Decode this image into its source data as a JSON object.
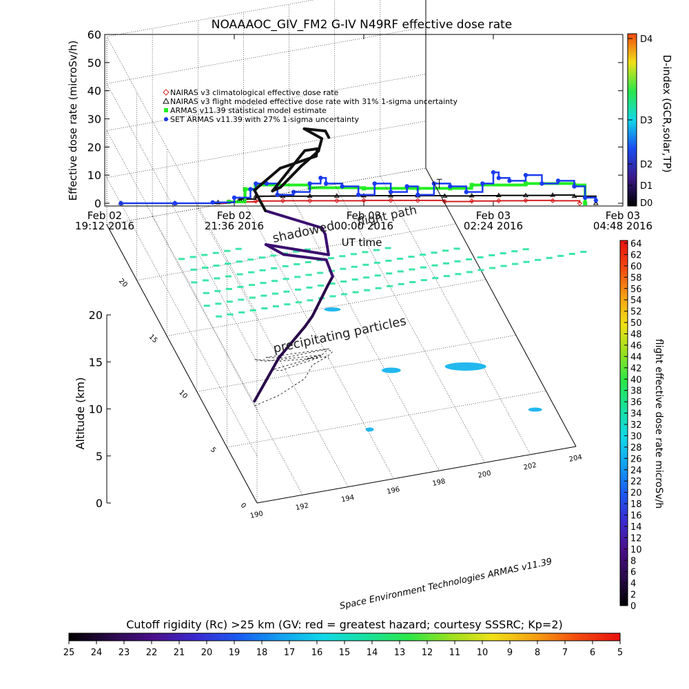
{
  "title": "NOAAAOC_GIV_FM2 G-IV   N49RF  effective dose rate",
  "chart_data": [
    {
      "type": "line",
      "ylabel": "Effective dose rate (microSv/h)",
      "ylim": [
        0,
        60
      ],
      "yticks": [
        "0",
        "10",
        "20",
        "30",
        "40",
        "50",
        "60"
      ],
      "xlabel": "UT time",
      "xticks": [
        {
          "line1": "Feb 02",
          "line2": "19:12 2016"
        },
        {
          "line1": "Feb 02",
          "line2": "21:36 2016"
        },
        {
          "line1": "Feb 03",
          "line2": "00:00 2016"
        },
        {
          "line1": "Feb 03",
          "line2": "02:24 2016"
        },
        {
          "line1": "Feb 03",
          "line2": "04:48 2016"
        }
      ],
      "x_hours": [
        19.2,
        21.6,
        24.0,
        26.4,
        28.8
      ],
      "legend_position": "upper-left",
      "series": [
        {
          "name": "NAIRAS v3 climatological effective dose rate",
          "color": "#d42020",
          "marker": "diamond",
          "x": [
            19.5,
            20.5,
            21.5,
            22.0,
            22.5,
            23.0,
            23.5,
            24.0,
            24.5,
            25.0,
            25.5,
            26.0,
            26.5,
            27.0,
            27.5,
            28.0
          ],
          "y": [
            0,
            0,
            0.5,
            0.8,
            0.9,
            0.9,
            0.9,
            1.0,
            1.0,
            1.0,
            0.6,
            0.8,
            0.9,
            1.0,
            0.9,
            0
          ]
        },
        {
          "name": "NAIRAS v3 flight modeled effective dose rate with 31% 1-sigma uncertainty",
          "color": "#000000",
          "marker": "triangle",
          "x": [
            19.5,
            20.5,
            21.3,
            21.7,
            22.0,
            22.5,
            23.0,
            23.5,
            24.0,
            24.5,
            25.0,
            25.5,
            26.0,
            26.5,
            27.0,
            27.5,
            27.9,
            28.3
          ],
          "y": [
            0,
            0,
            0.3,
            1.5,
            2.5,
            2.5,
            2.6,
            2.6,
            2.7,
            2.7,
            2.7,
            2.6,
            2.7,
            2.8,
            2.8,
            2.9,
            2.5,
            0
          ]
        },
        {
          "name": "ARMAS v11.39 statistical model estimate",
          "color": "#22ee22",
          "marker": "square",
          "x": [
            21.5,
            21.8,
            22.0,
            23.0,
            24.0,
            25.0,
            25.6,
            26.0,
            27.0,
            27.9,
            28.1
          ],
          "y": [
            0.5,
            5,
            6.5,
            5.5,
            5.3,
            5.3,
            5.3,
            6.5,
            7,
            6.5,
            0
          ]
        },
        {
          "name": "SET ARMAS v11.39 with 27% 1-sigma uncertainty",
          "color": "#1a3cf0",
          "marker": "circle",
          "x": [
            19.5,
            20.5,
            21.2,
            21.6,
            21.9,
            22.0,
            22.2,
            22.4,
            22.7,
            23.0,
            23.2,
            23.3,
            23.6,
            23.9,
            24.2,
            24.5,
            24.8,
            25.0,
            25.3,
            25.6,
            25.9,
            26.2,
            26.4,
            26.5,
            26.7,
            27.0,
            27.3,
            27.6,
            27.9,
            28.1,
            28.3
          ],
          "y": [
            0,
            0,
            0.3,
            2,
            5,
            7,
            7,
            3,
            4,
            7,
            9,
            7,
            6,
            3,
            7,
            4,
            6,
            3,
            7,
            6,
            4,
            7,
            11,
            9,
            8,
            10,
            7,
            8,
            6,
            2,
            1
          ]
        }
      ]
    },
    {
      "type": "scatter",
      "zlabel": "Altitude (km)",
      "zlim": [
        0,
        20
      ],
      "zticks": [
        "0",
        "5",
        "10",
        "15",
        "20"
      ],
      "x_ticks": [
        "190",
        "192",
        "194",
        "196",
        "198",
        "200",
        "202",
        "204"
      ],
      "y_ticks": [
        "0",
        "5",
        "10",
        "15",
        "20"
      ],
      "annotations": [
        "shadowed",
        "flight path",
        "precipitating particles"
      ],
      "series": [
        {
          "name": "flight path",
          "lon": [
            192.0,
            193.2,
            194.6,
            195.2,
            196.0,
            196.3,
            196.1,
            194.2,
            193.5,
            196.2,
            196.0,
            195.8,
            193.4,
            193.0,
            194.0,
            195.5,
            195.6,
            195.0,
            193.5,
            193.8,
            194.8,
            195.6,
            195.8,
            195.0,
            195.9,
            196.0
          ],
          "lat": [
            8.0,
            8.5,
            9.5,
            10.5,
            11.0,
            11.3,
            11.6,
            11.5,
            11.8,
            11.6,
            11.4,
            11.2,
            11.5,
            11.8,
            11.3,
            11.0,
            11.2,
            11.0,
            10.7,
            10.5,
            10.8,
            11.0,
            11.2,
            11.1,
            11.0,
            10.8
          ],
          "alt": [
            0.5,
            4.0,
            5.5,
            5.2,
            7.5,
            8.0,
            9.5,
            11.0,
            12.0,
            10.0,
            12.5,
            13.5,
            16.0,
            18.0,
            20.5,
            21.5,
            22.0,
            22.3,
            19.0,
            19.5,
            21.0,
            22.0,
            23.0,
            24.5,
            24.0,
            23.5
          ]
        }
      ]
    }
  ],
  "d_index": {
    "label": "D-index (GCR,solar,TP)",
    "ticks": [
      "D0",
      "D1",
      "D2",
      "D3",
      "D4"
    ]
  },
  "dose_colorbar": {
    "label": "flight effective dose rate microSv/h",
    "range": [
      0,
      64
    ],
    "ticks": [
      "0",
      "2",
      "4",
      "6",
      "8",
      "10",
      "12",
      "14",
      "16",
      "18",
      "20",
      "22",
      "24",
      "26",
      "28",
      "30",
      "32",
      "34",
      "36",
      "38",
      "40",
      "42",
      "44",
      "46",
      "48",
      "50",
      "52",
      "54",
      "56",
      "58",
      "60",
      "62",
      "64"
    ]
  },
  "rigidity_colorbar": {
    "label": "Cutoff rigidity (Rc) >25 km (GV: red = greatest hazard; courtesy SSSRC; Kp=2)",
    "ticks": [
      "25",
      "24",
      "23",
      "22",
      "21",
      "20",
      "19",
      "18",
      "17",
      "16",
      "15",
      "14",
      "13",
      "12",
      "11",
      "10",
      "9",
      "8",
      "7",
      "6",
      "5"
    ]
  },
  "credit": "Space Environment Technologies ARMAS v11.39",
  "palette": {
    "rainbow": [
      "#000000",
      "#2a0a4a",
      "#4a0f8a",
      "#3a2ad0",
      "#1a5af0",
      "#12a0f0",
      "#12d8e8",
      "#18e0a0",
      "#2ae64a",
      "#9ae020",
      "#f0e018",
      "#f5a012",
      "#f24a10",
      "#e81010"
    ],
    "grid_fill": "#3ce6a8"
  }
}
